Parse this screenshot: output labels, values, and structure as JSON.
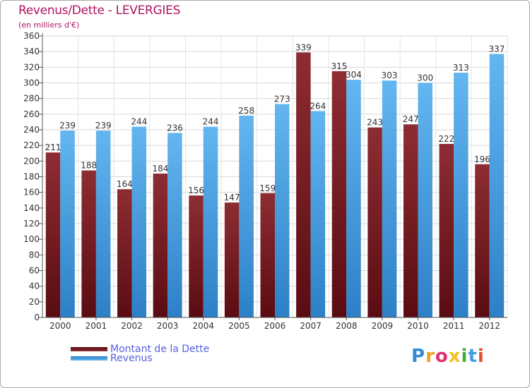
{
  "title": "Revenus/Dette - LEVERGIES",
  "subtitle": "(en milliers d'€)",
  "legend": {
    "debt_label": "Montant de la Dette",
    "revenue_label": "Revenus"
  },
  "logo": [
    "P",
    "r",
    "o",
    "x",
    "i",
    "t",
    "i"
  ],
  "colors": {
    "debt": "#7a1a20",
    "debt_light": "#8b2a32",
    "revenue": "#5aaeea",
    "revenue_dark": "#3a8ed0",
    "title": "#b0135f",
    "legend_text": "#5560e0",
    "grid": "#d8d8d8"
  },
  "chart_data": {
    "type": "bar",
    "categories": [
      "2000",
      "2001",
      "2002",
      "2003",
      "2004",
      "2005",
      "2006",
      "2007",
      "2008",
      "2009",
      "2010",
      "2011",
      "2012"
    ],
    "series": [
      {
        "name": "Montant de la Dette",
        "values": [
          211,
          188,
          164,
          184,
          156,
          147,
          159,
          339,
          315,
          243,
          247,
          222,
          196
        ]
      },
      {
        "name": "Revenus",
        "values": [
          239,
          239,
          244,
          236,
          244,
          258,
          273,
          264,
          304,
          303,
          300,
          313,
          337
        ]
      }
    ],
    "yticks": [
      0,
      20,
      40,
      60,
      80,
      100,
      120,
      140,
      160,
      180,
      200,
      220,
      240,
      260,
      280,
      300,
      320,
      340,
      360
    ],
    "ylim": [
      0,
      360
    ],
    "grid": true,
    "legend_position": "bottom-left"
  }
}
